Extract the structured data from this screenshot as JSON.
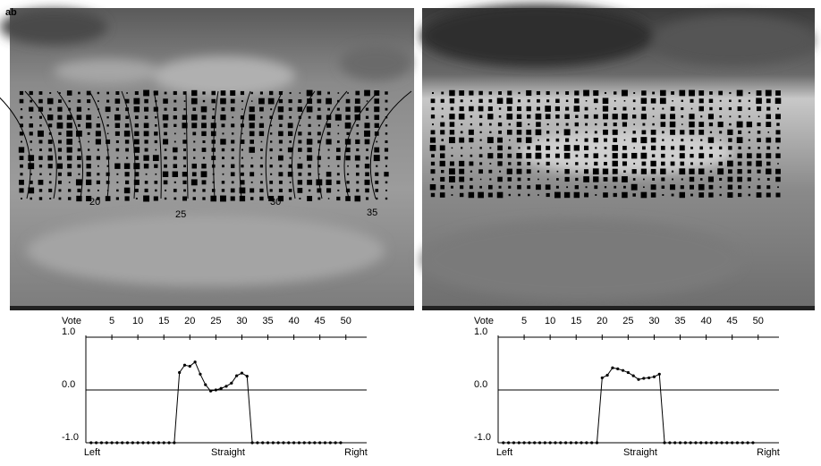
{
  "images": [
    {
      "label": "a",
      "contour_labels": [
        "20",
        "25",
        "30",
        "35"
      ]
    },
    {
      "label": "b"
    }
  ],
  "chart_data": [
    {
      "type": "line",
      "x_label": "Vote",
      "color": "#000000",
      "x": [
        1,
        2,
        3,
        4,
        5,
        6,
        7,
        8,
        9,
        10,
        11,
        12,
        13,
        14,
        15,
        16,
        17,
        18,
        19,
        20,
        21,
        22,
        23,
        24,
        25,
        26,
        27,
        28,
        29,
        30,
        31,
        32,
        33,
        34,
        35,
        36,
        37,
        38,
        39,
        40,
        41,
        42,
        43,
        44,
        45,
        46,
        47,
        48,
        49
      ],
      "values": [
        -1,
        -1,
        -1,
        -1,
        -1,
        -1,
        -1,
        -1,
        -1,
        -1,
        -1,
        -1,
        -1,
        -1,
        -1,
        -1,
        -1,
        0.33,
        0.47,
        0.45,
        0.53,
        0.3,
        0.1,
        -0.02,
        0.0,
        0.03,
        0.07,
        0.13,
        0.27,
        0.32,
        0.26,
        -1,
        -1,
        -1,
        -1,
        -1,
        -1,
        -1,
        -1,
        -1,
        -1,
        -1,
        -1,
        -1,
        -1,
        -1,
        -1,
        -1,
        -1
      ],
      "xlim": [
        0,
        54
      ],
      "xticks": [
        5,
        10,
        15,
        20,
        25,
        30,
        35,
        40,
        45,
        50
      ],
      "ylim": [
        -1,
        1
      ],
      "yticks": [
        {
          "value": 1,
          "label": "1.0"
        },
        {
          "value": 0,
          "label": "0.0"
        },
        {
          "value": -1,
          "label": "-1.0"
        }
      ],
      "bottom_labels": [
        "Left",
        "Straight",
        "Right"
      ]
    },
    {
      "type": "line",
      "x_label": "Vote",
      "color": "#000000",
      "x": [
        1,
        2,
        3,
        4,
        5,
        6,
        7,
        8,
        9,
        10,
        11,
        12,
        13,
        14,
        15,
        16,
        17,
        18,
        19,
        20,
        21,
        22,
        23,
        24,
        25,
        26,
        27,
        28,
        29,
        30,
        31,
        32,
        33,
        34,
        35,
        36,
        37,
        38,
        39,
        40,
        41,
        42,
        43,
        44,
        45,
        46,
        47,
        48,
        49
      ],
      "values": [
        -1,
        -1,
        -1,
        -1,
        -1,
        -1,
        -1,
        -1,
        -1,
        -1,
        -1,
        -1,
        -1,
        -1,
        -1,
        -1,
        -1,
        -1,
        -1,
        0.23,
        0.28,
        0.42,
        0.4,
        0.37,
        0.33,
        0.27,
        0.2,
        0.22,
        0.23,
        0.25,
        0.3,
        -1,
        -1,
        -1,
        -1,
        -1,
        -1,
        -1,
        -1,
        -1,
        -1,
        -1,
        -1,
        -1,
        -1,
        -1,
        -1,
        -1,
        -1
      ],
      "xlim": [
        0,
        54
      ],
      "xticks": [
        5,
        10,
        15,
        20,
        25,
        30,
        35,
        40,
        45,
        50
      ],
      "ylim": [
        -1,
        1
      ],
      "yticks": [
        {
          "value": 1,
          "label": "1.0"
        },
        {
          "value": 0,
          "label": "0.0"
        },
        {
          "value": -1,
          "label": "-1.0"
        }
      ],
      "bottom_labels": [
        "Left",
        "Straight",
        "Right"
      ]
    }
  ]
}
